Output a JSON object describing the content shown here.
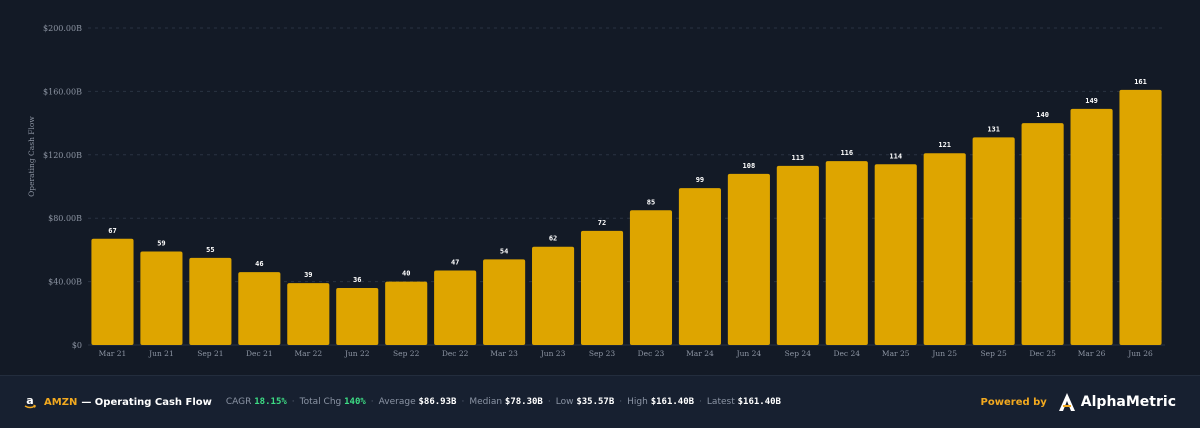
{
  "chart_data": {
    "type": "bar",
    "ylabel": "Operating Cash Flow",
    "ylim": [
      0,
      200
    ],
    "yticks": [
      "$0",
      "$40.00B",
      "$80.00B",
      "$120.00B",
      "$160.00B",
      "$200.00B"
    ],
    "categories": [
      "Mar 21",
      "Jun 21",
      "Sep 21",
      "Dec 21",
      "Mar 22",
      "Jun 22",
      "Sep 22",
      "Dec 22",
      "Mar 23",
      "Jun 23",
      "Sep 23",
      "Dec 23",
      "Mar 24",
      "Jun 24",
      "Sep 24",
      "Dec 24",
      "Mar 25",
      "Jun 25",
      "Sep 25",
      "Dec 25",
      "Mar 26",
      "Jun 26"
    ],
    "values": [
      67,
      59,
      55,
      46,
      39,
      36,
      40,
      47,
      54,
      62,
      72,
      85,
      99,
      108,
      113,
      116,
      114,
      121,
      131,
      140,
      149,
      161
    ],
    "bar_color": "#dea500",
    "grid": true
  },
  "footer": {
    "ticker": "AMZN",
    "title": "— Operating Cash Flow",
    "stats": [
      {
        "label": "CAGR",
        "value": "18.15%",
        "highlight": true
      },
      {
        "label": "Total Chg",
        "value": "140%",
        "highlight": true
      },
      {
        "label": "Average",
        "value": "$86.93B",
        "highlight": false
      },
      {
        "label": "Median",
        "value": "$78.30B",
        "highlight": false
      },
      {
        "label": "Low",
        "value": "$35.57B",
        "highlight": false
      },
      {
        "label": "High",
        "value": "$161.40B",
        "highlight": false
      },
      {
        "label": "Latest",
        "value": "$161.40B",
        "highlight": false
      }
    ],
    "separator": "·",
    "powered_by": "Powered by",
    "brand": "AlphaMetric",
    "accent": "#f2a91f",
    "positive": "#3ddc84"
  }
}
